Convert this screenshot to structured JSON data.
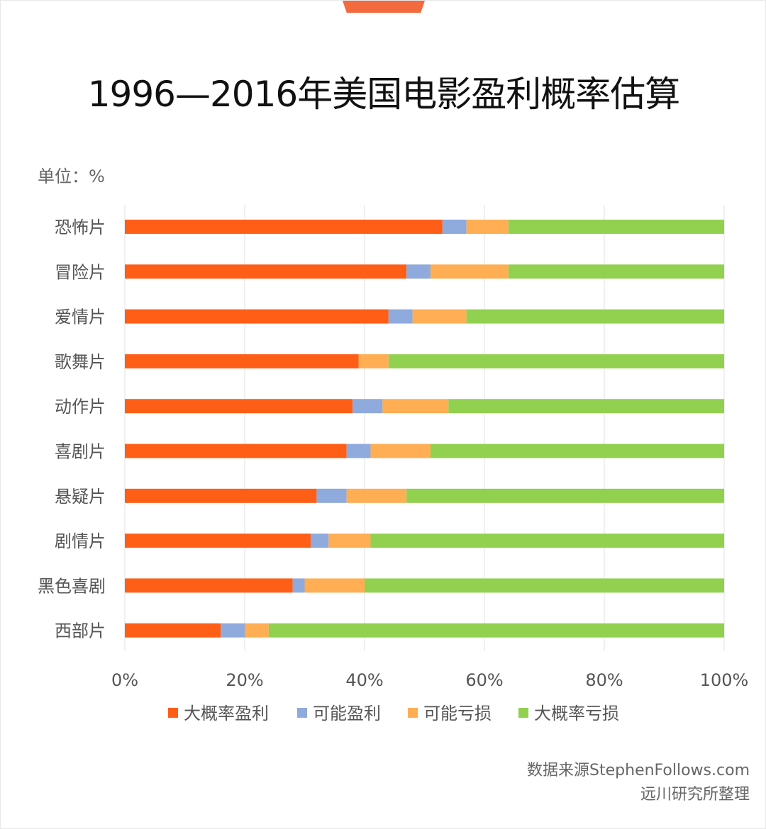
{
  "header": {
    "title": "1996—2016年美国电影盈利概率估算",
    "unit": "单位：%"
  },
  "footer": {
    "source_line1": "数据来源StephenFollows.com",
    "source_line2": "远川研究所整理"
  },
  "chart_data": {
    "type": "bar",
    "orientation": "horizontal",
    "stacked": true,
    "title": "1996—2016年美国电影盈利概率估算",
    "unit": "单位：%",
    "categories": [
      "恐怖片",
      "冒险片",
      "爱情片",
      "歌舞片",
      "动作片",
      "喜剧片",
      "悬疑片",
      "剧情片",
      "黑色喜剧",
      "西部片"
    ],
    "series": [
      {
        "name": "大概率盈利",
        "color": "#ff5e16",
        "values": [
          53,
          47,
          44,
          39,
          38,
          37,
          32,
          31,
          28,
          16
        ]
      },
      {
        "name": "可能盈利",
        "color": "#8faadc",
        "values": [
          4,
          4,
          4,
          0,
          5,
          4,
          5,
          3,
          2,
          4
        ]
      },
      {
        "name": "可能亏损",
        "color": "#ffae54",
        "values": [
          7,
          13,
          9,
          5,
          11,
          10,
          10,
          7,
          10,
          4
        ]
      },
      {
        "name": "大概率亏损",
        "color": "#92d050",
        "values": [
          36,
          36,
          43,
          56,
          46,
          49,
          53,
          59,
          60,
          76
        ]
      }
    ],
    "xlim": [
      0,
      100
    ],
    "xticks": [
      "0%",
      "20%",
      "40%",
      "60%",
      "80%",
      "100%"
    ],
    "grid": true,
    "legend_position": "bottom"
  }
}
